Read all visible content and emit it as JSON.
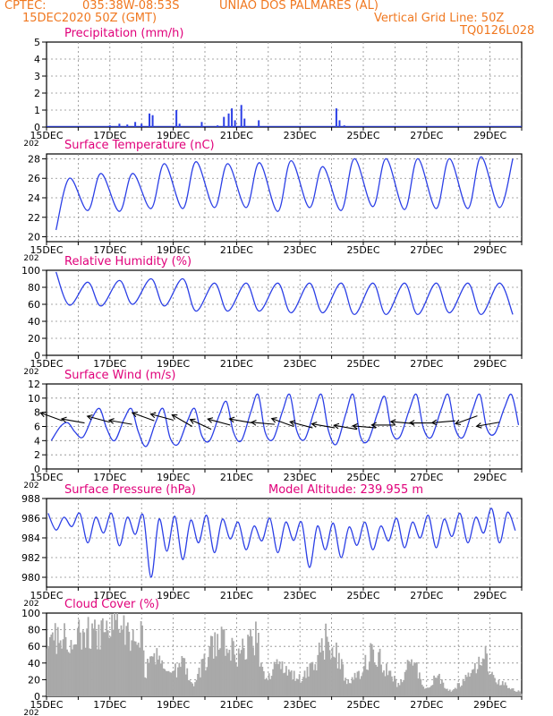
{
  "header": {
    "source": "CPTEC:",
    "location_coords": "035:38W-08:53S",
    "location_name": "UNIAO DOS PALMARES (AL)",
    "init_time": "15DEC2020 50Z (GMT)",
    "grid_note": "Vertical Grid Line: 50Z",
    "model_code": "TQ0126L028"
  },
  "colors": {
    "header": "#f07820",
    "title": "#e0007a",
    "series": "#2b3fe6",
    "cloud": "#a9a9a9",
    "wind_arrow": "#000000",
    "grid": "#8a8a8a"
  },
  "model_altitude_label": "Model Altitude: 239.955 m",
  "chart_data": [
    {
      "id": "precipitation",
      "type": "bar",
      "title": "Precipitation (mm/h)",
      "ylim": [
        0,
        5
      ],
      "yticks": [
        "0",
        "1",
        "2",
        "3",
        "4",
        "5"
      ],
      "x_days": [
        15,
        30
      ],
      "xtick_labels": [
        "15DEC",
        "17DEC",
        "19DEC",
        "21DEC",
        "23DEC",
        "25DEC",
        "27DEC",
        "29DEC"
      ],
      "year_label": "202",
      "grid": true,
      "bars": [
        {
          "x": 17.0,
          "y": 0.1
        },
        {
          "x": 17.3,
          "y": 0.2
        },
        {
          "x": 17.55,
          "y": 0.15
        },
        {
          "x": 17.8,
          "y": 0.3
        },
        {
          "x": 18.0,
          "y": 0.2
        },
        {
          "x": 18.25,
          "y": 0.8
        },
        {
          "x": 18.35,
          "y": 0.7
        },
        {
          "x": 19.1,
          "y": 1.0
        },
        {
          "x": 19.2,
          "y": 0.2
        },
        {
          "x": 19.9,
          "y": 0.3
        },
        {
          "x": 20.4,
          "y": 0.1
        },
        {
          "x": 20.6,
          "y": 0.6
        },
        {
          "x": 20.75,
          "y": 0.8
        },
        {
          "x": 20.85,
          "y": 1.1
        },
        {
          "x": 20.95,
          "y": 0.4
        },
        {
          "x": 21.15,
          "y": 1.3
        },
        {
          "x": 21.25,
          "y": 0.5
        },
        {
          "x": 21.7,
          "y": 0.4
        },
        {
          "x": 24.15,
          "y": 1.1
        },
        {
          "x": 24.25,
          "y": 0.4
        },
        {
          "x": 24.4,
          "y": 0.1
        }
      ]
    },
    {
      "id": "temperature",
      "type": "line",
      "title": "Surface Temperature (nC)",
      "ylim": [
        19.5,
        28.5
      ],
      "yticks": [
        "20",
        "22",
        "24",
        "26",
        "28"
      ],
      "x_days": [
        15,
        30
      ],
      "xtick_labels": [
        "15DEC",
        "17DEC",
        "19DEC",
        "21DEC",
        "23DEC",
        "25DEC",
        "27DEC",
        "29DEC"
      ],
      "year_label": "202",
      "grid": true,
      "pattern": "diurnal",
      "mins": [
        20.7,
        22.7,
        22.6,
        22.9,
        22.9,
        23.0,
        23.0,
        22.6,
        23.0,
        22.7,
        23.1,
        22.8,
        22.9,
        22.9,
        23.0,
        24.9
      ],
      "maxs": [
        26.0,
        26.5,
        26.5,
        27.5,
        27.7,
        27.5,
        27.6,
        27.8,
        27.2,
        28.0,
        28.0,
        28.0,
        28.0,
        28.2,
        28.0,
        27.5
      ]
    },
    {
      "id": "humidity",
      "type": "line",
      "title": "Relative Humidity (%)",
      "ylim": [
        0,
        100
      ],
      "yticks": [
        "0",
        "20",
        "40",
        "60",
        "80",
        "100"
      ],
      "x_days": [
        15,
        30
      ],
      "xtick_labels": [
        "15DEC",
        "17DEC",
        "19DEC",
        "21DEC",
        "23DEC",
        "25DEC",
        "27DEC",
        "29DEC"
      ],
      "year_label": "202",
      "grid": true,
      "pattern": "inverse_diurnal",
      "mins": [
        59,
        58,
        60,
        58,
        52,
        52,
        52,
        50,
        50,
        48,
        48,
        48,
        50,
        48,
        48,
        48
      ],
      "maxs": [
        98,
        86,
        88,
        90,
        90,
        85,
        85,
        85,
        85,
        85,
        85,
        85,
        85,
        85,
        85,
        72
      ]
    },
    {
      "id": "wind",
      "type": "line",
      "title": "Surface Wind (m/s)",
      "ylim": [
        0,
        12
      ],
      "yticks": [
        "0",
        "2",
        "4",
        "6",
        "8",
        "10",
        "12"
      ],
      "x_days": [
        15,
        30
      ],
      "xtick_labels": [
        "15DEC",
        "17DEC",
        "19DEC",
        "21DEC",
        "23DEC",
        "25DEC",
        "27DEC",
        "29DEC"
      ],
      "year_label": "202",
      "grid": true,
      "pattern": "diurnal_wind",
      "mins": [
        4.0,
        4.5,
        4.0,
        3.2,
        3.5,
        4.0,
        4.0,
        4.2,
        4.2,
        3.5,
        4.0,
        4.5,
        4.5,
        4.5,
        5.0,
        5.0
      ],
      "maxs": [
        6.5,
        8.5,
        8.5,
        8.5,
        8.5,
        9.5,
        10.5,
        10.5,
        10.5,
        10.5,
        10.2,
        10.5,
        10.5,
        10.5,
        10.5,
        10.5
      ],
      "arrows": [
        {
          "day": 15.5,
          "speed": 6.8,
          "dir_deg": 20
        },
        {
          "day": 16.2,
          "speed": 6.5,
          "dir_deg": 10
        },
        {
          "day": 17.0,
          "speed": 6.6,
          "dir_deg": 15
        },
        {
          "day": 17.7,
          "speed": 6.3,
          "dir_deg": 10
        },
        {
          "day": 18.4,
          "speed": 6.8,
          "dir_deg": 20
        },
        {
          "day": 19.0,
          "speed": 6.9,
          "dir_deg": 15
        },
        {
          "day": 19.6,
          "speed": 6.0,
          "dir_deg": 30
        },
        {
          "day": 20.2,
          "speed": 5.6,
          "dir_deg": 25
        },
        {
          "day": 20.8,
          "speed": 6.2,
          "dir_deg": 15
        },
        {
          "day": 21.5,
          "speed": 6.5,
          "dir_deg": 10
        },
        {
          "day": 22.2,
          "speed": 6.3,
          "dir_deg": 5
        },
        {
          "day": 22.8,
          "speed": 6.0,
          "dir_deg": 20
        },
        {
          "day": 23.4,
          "speed": 5.8,
          "dir_deg": 15
        },
        {
          "day": 24.1,
          "speed": 5.8,
          "dir_deg": 10
        },
        {
          "day": 24.8,
          "speed": 5.6,
          "dir_deg": 10
        },
        {
          "day": 25.4,
          "speed": 5.8,
          "dir_deg": 5
        },
        {
          "day": 26.0,
          "speed": 6.2,
          "dir_deg": 0
        },
        {
          "day": 26.6,
          "speed": 6.4,
          "dir_deg": 5
        },
        {
          "day": 27.2,
          "speed": 6.5,
          "dir_deg": 0
        },
        {
          "day": 27.9,
          "speed": 6.8,
          "dir_deg": -5
        },
        {
          "day": 28.6,
          "speed": 7.5,
          "dir_deg": -20
        },
        {
          "day": 29.3,
          "speed": 6.6,
          "dir_deg": -10
        }
      ]
    },
    {
      "id": "pressure",
      "type": "line",
      "title": "Surface Pressure (hPa)",
      "ylim": [
        979,
        988
      ],
      "yticks": [
        "980",
        "982",
        "984",
        "986",
        "988"
      ],
      "x_days": [
        15,
        30
      ],
      "xtick_labels": [
        "15DEC",
        "17DEC",
        "19DEC",
        "21DEC",
        "23DEC",
        "25DEC",
        "27DEC",
        "29DEC"
      ],
      "year_label": "202",
      "grid": true,
      "pattern": "semidiurnal",
      "mins": [
        984.8,
        983.5,
        983.2,
        980.0,
        981.8,
        982.5,
        982.8,
        982.5,
        981.0,
        982.0,
        982.8,
        983.0,
        983.0,
        983.5,
        983.5,
        984.0
      ],
      "maxs": [
        986.5,
        986.5,
        986.5,
        986.3,
        986.2,
        986.3,
        985.6,
        986.0,
        985.6,
        985.5,
        985.6,
        986.0,
        986.3,
        986.5,
        987.0,
        985.5
      ]
    },
    {
      "id": "cloud",
      "type": "bar",
      "title": "Cloud Cover (%)",
      "ylim": [
        0,
        100
      ],
      "yticks": [
        "0",
        "20",
        "40",
        "60",
        "80",
        "100"
      ],
      "x_days": [
        15,
        30
      ],
      "xtick_labels": [
        "15DEC",
        "17DEC",
        "19DEC",
        "21DEC",
        "23DEC",
        "25DEC",
        "27DEC",
        "29DEC"
      ],
      "year_label": "202",
      "grid": true,
      "envelope": [
        {
          "x": 15.0,
          "y": 88
        },
        {
          "x": 15.5,
          "y": 92
        },
        {
          "x": 16.0,
          "y": 88
        },
        {
          "x": 16.5,
          "y": 95
        },
        {
          "x": 17.0,
          "y": 98
        },
        {
          "x": 17.5,
          "y": 96
        },
        {
          "x": 18.0,
          "y": 90
        },
        {
          "x": 18.1,
          "y": 12
        },
        {
          "x": 18.2,
          "y": 60
        },
        {
          "x": 18.5,
          "y": 55
        },
        {
          "x": 19.0,
          "y": 35
        },
        {
          "x": 19.3,
          "y": 55
        },
        {
          "x": 19.6,
          "y": 15
        },
        {
          "x": 19.9,
          "y": 45
        },
        {
          "x": 20.2,
          "y": 75
        },
        {
          "x": 20.6,
          "y": 85
        },
        {
          "x": 21.0,
          "y": 55
        },
        {
          "x": 21.3,
          "y": 80
        },
        {
          "x": 21.6,
          "y": 88
        },
        {
          "x": 21.9,
          "y": 20
        },
        {
          "x": 22.2,
          "y": 55
        },
        {
          "x": 22.6,
          "y": 35
        },
        {
          "x": 23.0,
          "y": 25
        },
        {
          "x": 23.4,
          "y": 45
        },
        {
          "x": 23.8,
          "y": 85
        },
        {
          "x": 24.1,
          "y": 65
        },
        {
          "x": 24.5,
          "y": 20
        },
        {
          "x": 24.9,
          "y": 35
        },
        {
          "x": 25.3,
          "y": 70
        },
        {
          "x": 25.7,
          "y": 40
        },
        {
          "x": 26.1,
          "y": 15
        },
        {
          "x": 26.5,
          "y": 60
        },
        {
          "x": 26.9,
          "y": 10
        },
        {
          "x": 27.3,
          "y": 30
        },
        {
          "x": 27.7,
          "y": 8
        },
        {
          "x": 28.1,
          "y": 20
        },
        {
          "x": 28.5,
          "y": 40
        },
        {
          "x": 28.8,
          "y": 62
        },
        {
          "x": 29.1,
          "y": 25
        },
        {
          "x": 29.5,
          "y": 15
        },
        {
          "x": 29.8,
          "y": 8
        },
        {
          "x": 30.0,
          "y": 5
        }
      ]
    }
  ]
}
